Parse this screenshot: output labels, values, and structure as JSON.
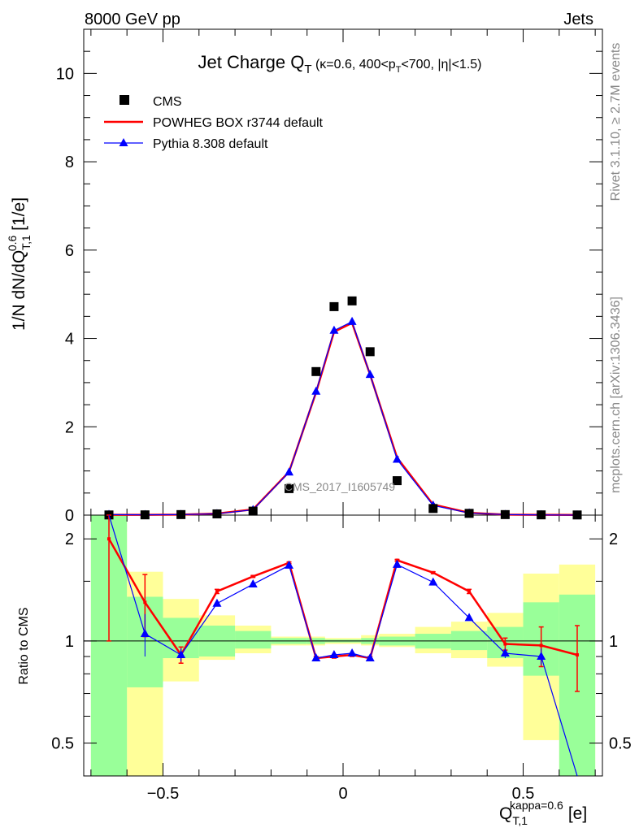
{
  "header": {
    "left": "8000 GeV pp",
    "right": "Jets"
  },
  "side_labels": {
    "rivet": "Rivet 3.1.10, ≥ 2.7M events",
    "mcplots": "mcplots.cern.ch [arXiv:1306.3436]"
  },
  "watermark": "CMS_2017_I1605749",
  "colors": {
    "data": "#000000",
    "powheg": "#ff0000",
    "pythia": "#0000ff",
    "band_inner": "#99ff99",
    "band_outer": "#ffff99"
  },
  "chart_data": {
    "type": "line",
    "title": "Jet Charge Q_T (κ=0.6, 400<p_T<700, |η|<1.5)",
    "xlabel": "Q_T,1^kappa=0.6 [e]",
    "ylabel": "1/N dN/dQ_T,1^0.6 [1/e]",
    "xlim": [
      -0.72,
      0.72
    ],
    "ylim": [
      0,
      11
    ],
    "yticks": [
      0,
      2,
      4,
      6,
      8,
      10
    ],
    "xticks": [
      -0.5,
      0,
      0.5
    ],
    "legend_position": "top-left",
    "bin_edges": [
      -0.7,
      -0.6,
      -0.5,
      -0.4,
      -0.3,
      -0.2,
      -0.1,
      -0.05,
      0.0,
      0.05,
      0.1,
      0.2,
      0.3,
      0.4,
      0.5,
      0.6,
      0.7
    ],
    "x": [
      -0.65,
      -0.55,
      -0.45,
      -0.35,
      -0.25,
      -0.15,
      -0.075,
      -0.025,
      0.025,
      0.075,
      0.15,
      0.25,
      0.35,
      0.45,
      0.55,
      0.65
    ],
    "series": [
      {
        "name": "CMS",
        "style": "markers",
        "values": [
          0.004,
          0.006,
          0.012,
          0.028,
          0.09,
          0.6,
          3.25,
          4.72,
          4.85,
          3.7,
          0.78,
          0.15,
          0.04,
          0.012,
          0.006,
          0.004
        ]
      },
      {
        "name": "POWHEG BOX r3744 default",
        "style": "line",
        "values": [
          0.008,
          0.008,
          0.011,
          0.035,
          0.13,
          0.98,
          2.78,
          4.15,
          4.35,
          3.18,
          1.3,
          0.24,
          0.053,
          0.012,
          0.006,
          0.004
        ]
      },
      {
        "name": "Pythia 8.308 default",
        "style": "line-triangles",
        "values": [
          0.012,
          0.007,
          0.011,
          0.031,
          0.12,
          0.97,
          2.8,
          4.18,
          4.38,
          3.18,
          1.26,
          0.22,
          0.047,
          0.011,
          0.005,
          0.001
        ]
      }
    ],
    "ratio": {
      "ylabel": "Ratio to CMS",
      "ylim": [
        0.4,
        2.35
      ],
      "yticks": [
        0.5,
        1,
        2
      ],
      "powheg": [
        2.0,
        1.3,
        0.91,
        1.4,
        1.55,
        1.7,
        0.89,
        0.9,
        0.91,
        0.89,
        1.73,
        1.59,
        1.4,
        0.98,
        0.97,
        0.91
      ],
      "powheg_err": [
        1.0,
        0.27,
        0.05,
        0.02,
        0.01,
        0.01,
        0.01,
        0.01,
        0.01,
        0.01,
        0.01,
        0.01,
        0.02,
        0.04,
        0.13,
        0.2
      ],
      "pythia": [
        2.8,
        1.05,
        0.91,
        1.29,
        1.47,
        1.67,
        0.89,
        0.91,
        0.92,
        0.89,
        1.68,
        1.49,
        1.17,
        0.92,
        0.9,
        0.25
      ],
      "pythia_err": [
        0.5,
        0.15,
        0.04,
        0.02,
        0.01,
        0.01,
        0.01,
        0.01,
        0.01,
        0.01,
        0.01,
        0.01,
        0.02,
        0.03,
        0.05,
        0.2
      ],
      "band_inner": [
        [
          0.1,
          2.35
        ],
        [
          0.73,
          1.35
        ],
        [
          0.89,
          1.17
        ],
        [
          0.9,
          1.11
        ],
        [
          0.95,
          1.07
        ],
        [
          0.98,
          1.02
        ],
        [
          0.98,
          1.02
        ],
        [
          0.99,
          1.01
        ],
        [
          0.99,
          1.01
        ],
        [
          0.98,
          1.02
        ],
        [
          0.97,
          1.03
        ],
        [
          0.95,
          1.05
        ],
        [
          0.94,
          1.07
        ],
        [
          0.89,
          1.1
        ],
        [
          0.79,
          1.3
        ],
        [
          0.1,
          1.37
        ]
      ],
      "band_outer": [
        [
          0.1,
          2.35
        ],
        [
          0.1,
          1.6
        ],
        [
          0.76,
          1.33
        ],
        [
          0.88,
          1.19
        ],
        [
          0.92,
          1.11
        ],
        [
          0.97,
          1.03
        ],
        [
          0.97,
          1.03
        ],
        [
          0.98,
          1.02
        ],
        [
          0.98,
          1.02
        ],
        [
          0.97,
          1.04
        ],
        [
          0.96,
          1.05
        ],
        [
          0.92,
          1.1
        ],
        [
          0.89,
          1.14
        ],
        [
          0.84,
          1.21
        ],
        [
          0.51,
          1.58
        ],
        [
          0.41,
          1.68
        ]
      ]
    }
  }
}
